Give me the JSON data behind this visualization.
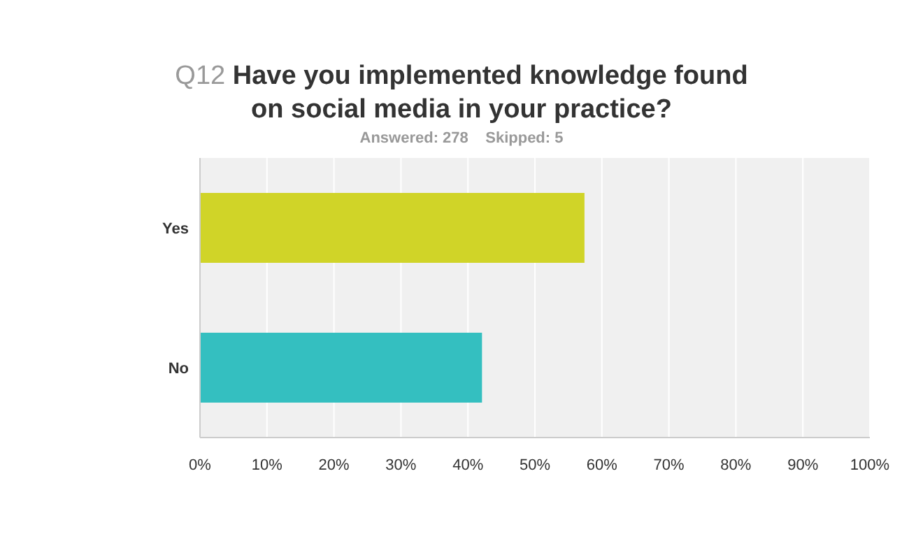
{
  "chart_data": {
    "type": "bar",
    "orientation": "horizontal",
    "title": "Q12 Have you implemented knowledge found on social media in your practice?",
    "subtitle": "Answered: 278    Skipped: 5",
    "categories": [
      "Yes",
      "No"
    ],
    "values": [
      57.4,
      42.1
    ],
    "colors": [
      "#d0d428",
      "#34bfc0"
    ],
    "xlim": [
      0,
      100
    ],
    "xticks": [
      {
        "value": 0,
        "label": "0%"
      },
      {
        "value": 10,
        "label": "10%"
      },
      {
        "value": 20,
        "label": "20%"
      },
      {
        "value": 30,
        "label": "30%"
      },
      {
        "value": 40,
        "label": "40%"
      },
      {
        "value": 50,
        "label": "50%"
      },
      {
        "value": 60,
        "label": "60%"
      },
      {
        "value": 70,
        "label": "70%"
      },
      {
        "value": 80,
        "label": "80%"
      },
      {
        "value": 90,
        "label": "90%"
      },
      {
        "value": 100,
        "label": "100%"
      }
    ],
    "grid": "x"
  }
}
